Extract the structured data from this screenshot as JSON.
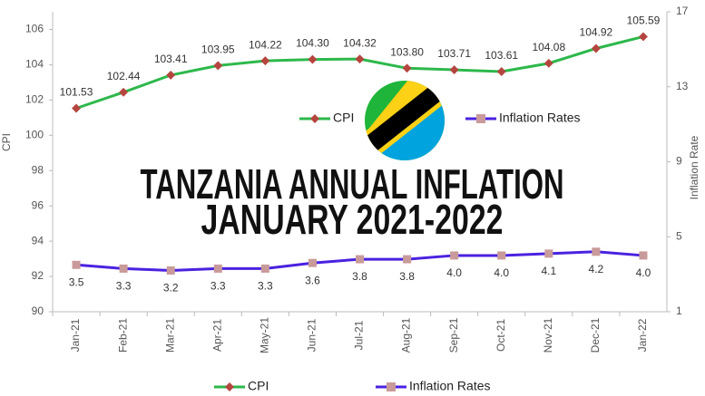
{
  "chart_data": {
    "type": "line",
    "title": "TANZANIA ANNUAL INFLATION",
    "subtitle": "JANUARY 2021-2022",
    "ylabel": "CPI",
    "y2label": "Inflation Rate",
    "categories": [
      "Jan-21",
      "Feb-21",
      "Mar-21",
      "Apr-21",
      "May-21",
      "Jun-21",
      "Jul-21",
      "Aug-21",
      "Sep-21",
      "Oct-21",
      "Nov-21",
      "Dec-21",
      "Jan-22"
    ],
    "series": [
      {
        "name": "CPI",
        "color": "#2db84b",
        "marker_color": "#b5453f",
        "values": [
          101.53,
          102.44,
          103.41,
          103.95,
          104.22,
          104.3,
          104.32,
          103.8,
          103.71,
          103.61,
          104.08,
          104.92,
          105.59
        ],
        "value_labels": [
          "101.53",
          "102.44",
          "103.41",
          "103.95",
          "104.22",
          "104.30",
          "104.32",
          "103.80",
          "103.71",
          "103.61",
          "104.08",
          "104.92",
          "105.59"
        ]
      },
      {
        "name": "Inflation Rates",
        "color": "#4a22e0",
        "marker_color": "#c99a9a",
        "axis": "y2",
        "values": [
          3.5,
          3.3,
          3.2,
          3.3,
          3.3,
          3.6,
          3.8,
          3.8,
          4.0,
          4.0,
          4.1,
          4.2,
          4.0
        ],
        "value_labels": [
          "3.5",
          "3.3",
          "3.2",
          "3.3",
          "3.3",
          "3.6",
          "3.8",
          "3.8",
          "4.0",
          "4.0",
          "4.1",
          "4.2",
          "4.0"
        ]
      }
    ],
    "ylim": [
      90,
      107
    ],
    "yticks": [
      90,
      92,
      94,
      96,
      98,
      100,
      102,
      104,
      106
    ],
    "y2lim": [
      1,
      17
    ],
    "y2ticks": [
      1,
      5,
      9,
      13,
      17
    ],
    "grid": false
  }
}
